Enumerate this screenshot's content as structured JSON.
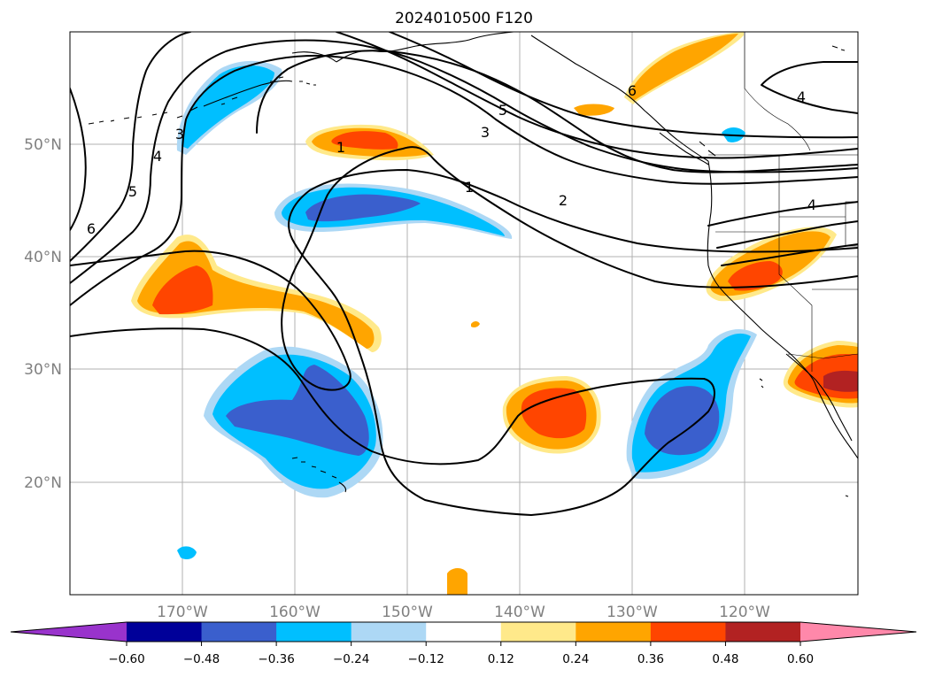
{
  "title": "2024010500 F120",
  "map": {
    "lat_labels": [
      "50°N",
      "40°N",
      "30°N",
      "20°N"
    ],
    "lon_labels": [
      "170°W",
      "160°W",
      "150°W",
      "140°W",
      "130°W",
      "120°W"
    ],
    "contour_labels": [
      {
        "text": "1"
      },
      {
        "text": "1"
      },
      {
        "text": "2"
      },
      {
        "text": "3"
      },
      {
        "text": "3"
      },
      {
        "text": "4"
      },
      {
        "text": "4"
      },
      {
        "text": "4"
      },
      {
        "text": "5"
      },
      {
        "text": "5"
      },
      {
        "text": "6"
      },
      {
        "text": "6"
      }
    ]
  },
  "colorbar": {
    "labels": [
      "−0.60",
      "−0.48",
      "−0.36",
      "−0.24",
      "−0.12",
      "0.12",
      "0.24",
      "0.36",
      "0.48",
      "0.60"
    ],
    "colors": {
      "extend_low": "#9933cc",
      "bins": [
        "#000099",
        "#3a5fcd",
        "#00bfff",
        "#add8f5",
        "#ffffff",
        "#ffe98a",
        "#ffa500",
        "#ff4500",
        "#b22222"
      ],
      "extend_high": "#ff88aa"
    }
  },
  "shading_colors": {
    "neg_light": "#add8f5",
    "neg_mid": "#00bfff",
    "neg_strong": "#3a5fcd",
    "pos_light": "#ffe98a",
    "pos_mid": "#ffa500",
    "pos_strong": "#ff4500",
    "pos_max": "#b22222"
  }
}
